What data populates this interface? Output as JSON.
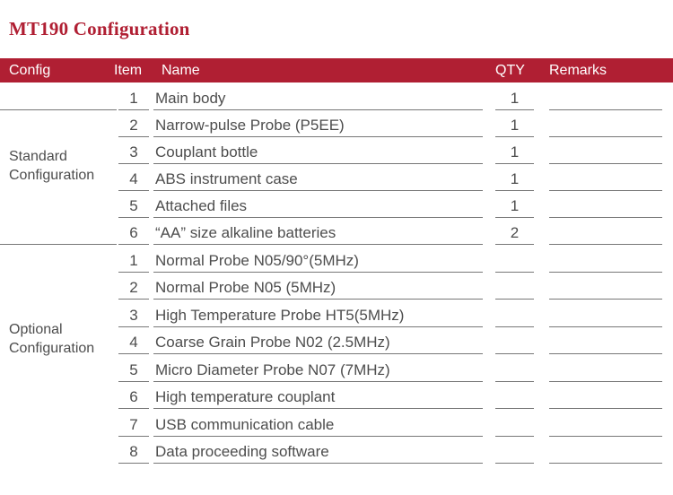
{
  "title": "MT190 Configuration",
  "colors": {
    "accent_red": "#b01f33",
    "text_gray": "#4d4d4d",
    "line_gray": "#777777",
    "header_text": "#ffffff"
  },
  "table": {
    "headers": {
      "config": "Config",
      "item": "Item",
      "name": "Name",
      "qty": "QTY",
      "remarks": "Remarks"
    },
    "sections": [
      {
        "config_label": "Standard Configuration",
        "rows": [
          {
            "item": "1",
            "name": "Main body",
            "qty": "1",
            "remarks": ""
          },
          {
            "item": "2",
            "name": "Narrow-pulse Probe (P5EE)",
            "qty": "1",
            "remarks": ""
          },
          {
            "item": "3",
            "name": "Couplant bottle",
            "qty": "1",
            "remarks": ""
          },
          {
            "item": "4",
            "name": "ABS instrument case",
            "qty": "1",
            "remarks": ""
          },
          {
            "item": "5",
            "name": "Attached files",
            "qty": "1",
            "remarks": ""
          },
          {
            "item": "6",
            "name": "“AA” size alkaline batteries",
            "qty": "2",
            "remarks": ""
          }
        ]
      },
      {
        "config_label": "Optional Configuration",
        "rows": [
          {
            "item": "1",
            "name": "Normal Probe N05/90°(5MHz)",
            "qty": "",
            "remarks": ""
          },
          {
            "item": "2",
            "name": "Normal Probe N05 (5MHz)",
            "qty": "",
            "remarks": ""
          },
          {
            "item": "3",
            "name": "High Temperature Probe HT5(5MHz)",
            "qty": "",
            "remarks": ""
          },
          {
            "item": "4",
            "name": "Coarse Grain Probe N02 (2.5MHz)",
            "qty": "",
            "remarks": ""
          },
          {
            "item": "5",
            "name": "Micro Diameter Probe N07 (7MHz)",
            "qty": "",
            "remarks": ""
          },
          {
            "item": "6",
            "name": "High temperature couplant",
            "qty": "",
            "remarks": ""
          },
          {
            "item": "7",
            "name": "USB communication cable",
            "qty": "",
            "remarks": ""
          },
          {
            "item": "8",
            "name": "Data proceeding software",
            "qty": "",
            "remarks": ""
          }
        ]
      }
    ]
  }
}
